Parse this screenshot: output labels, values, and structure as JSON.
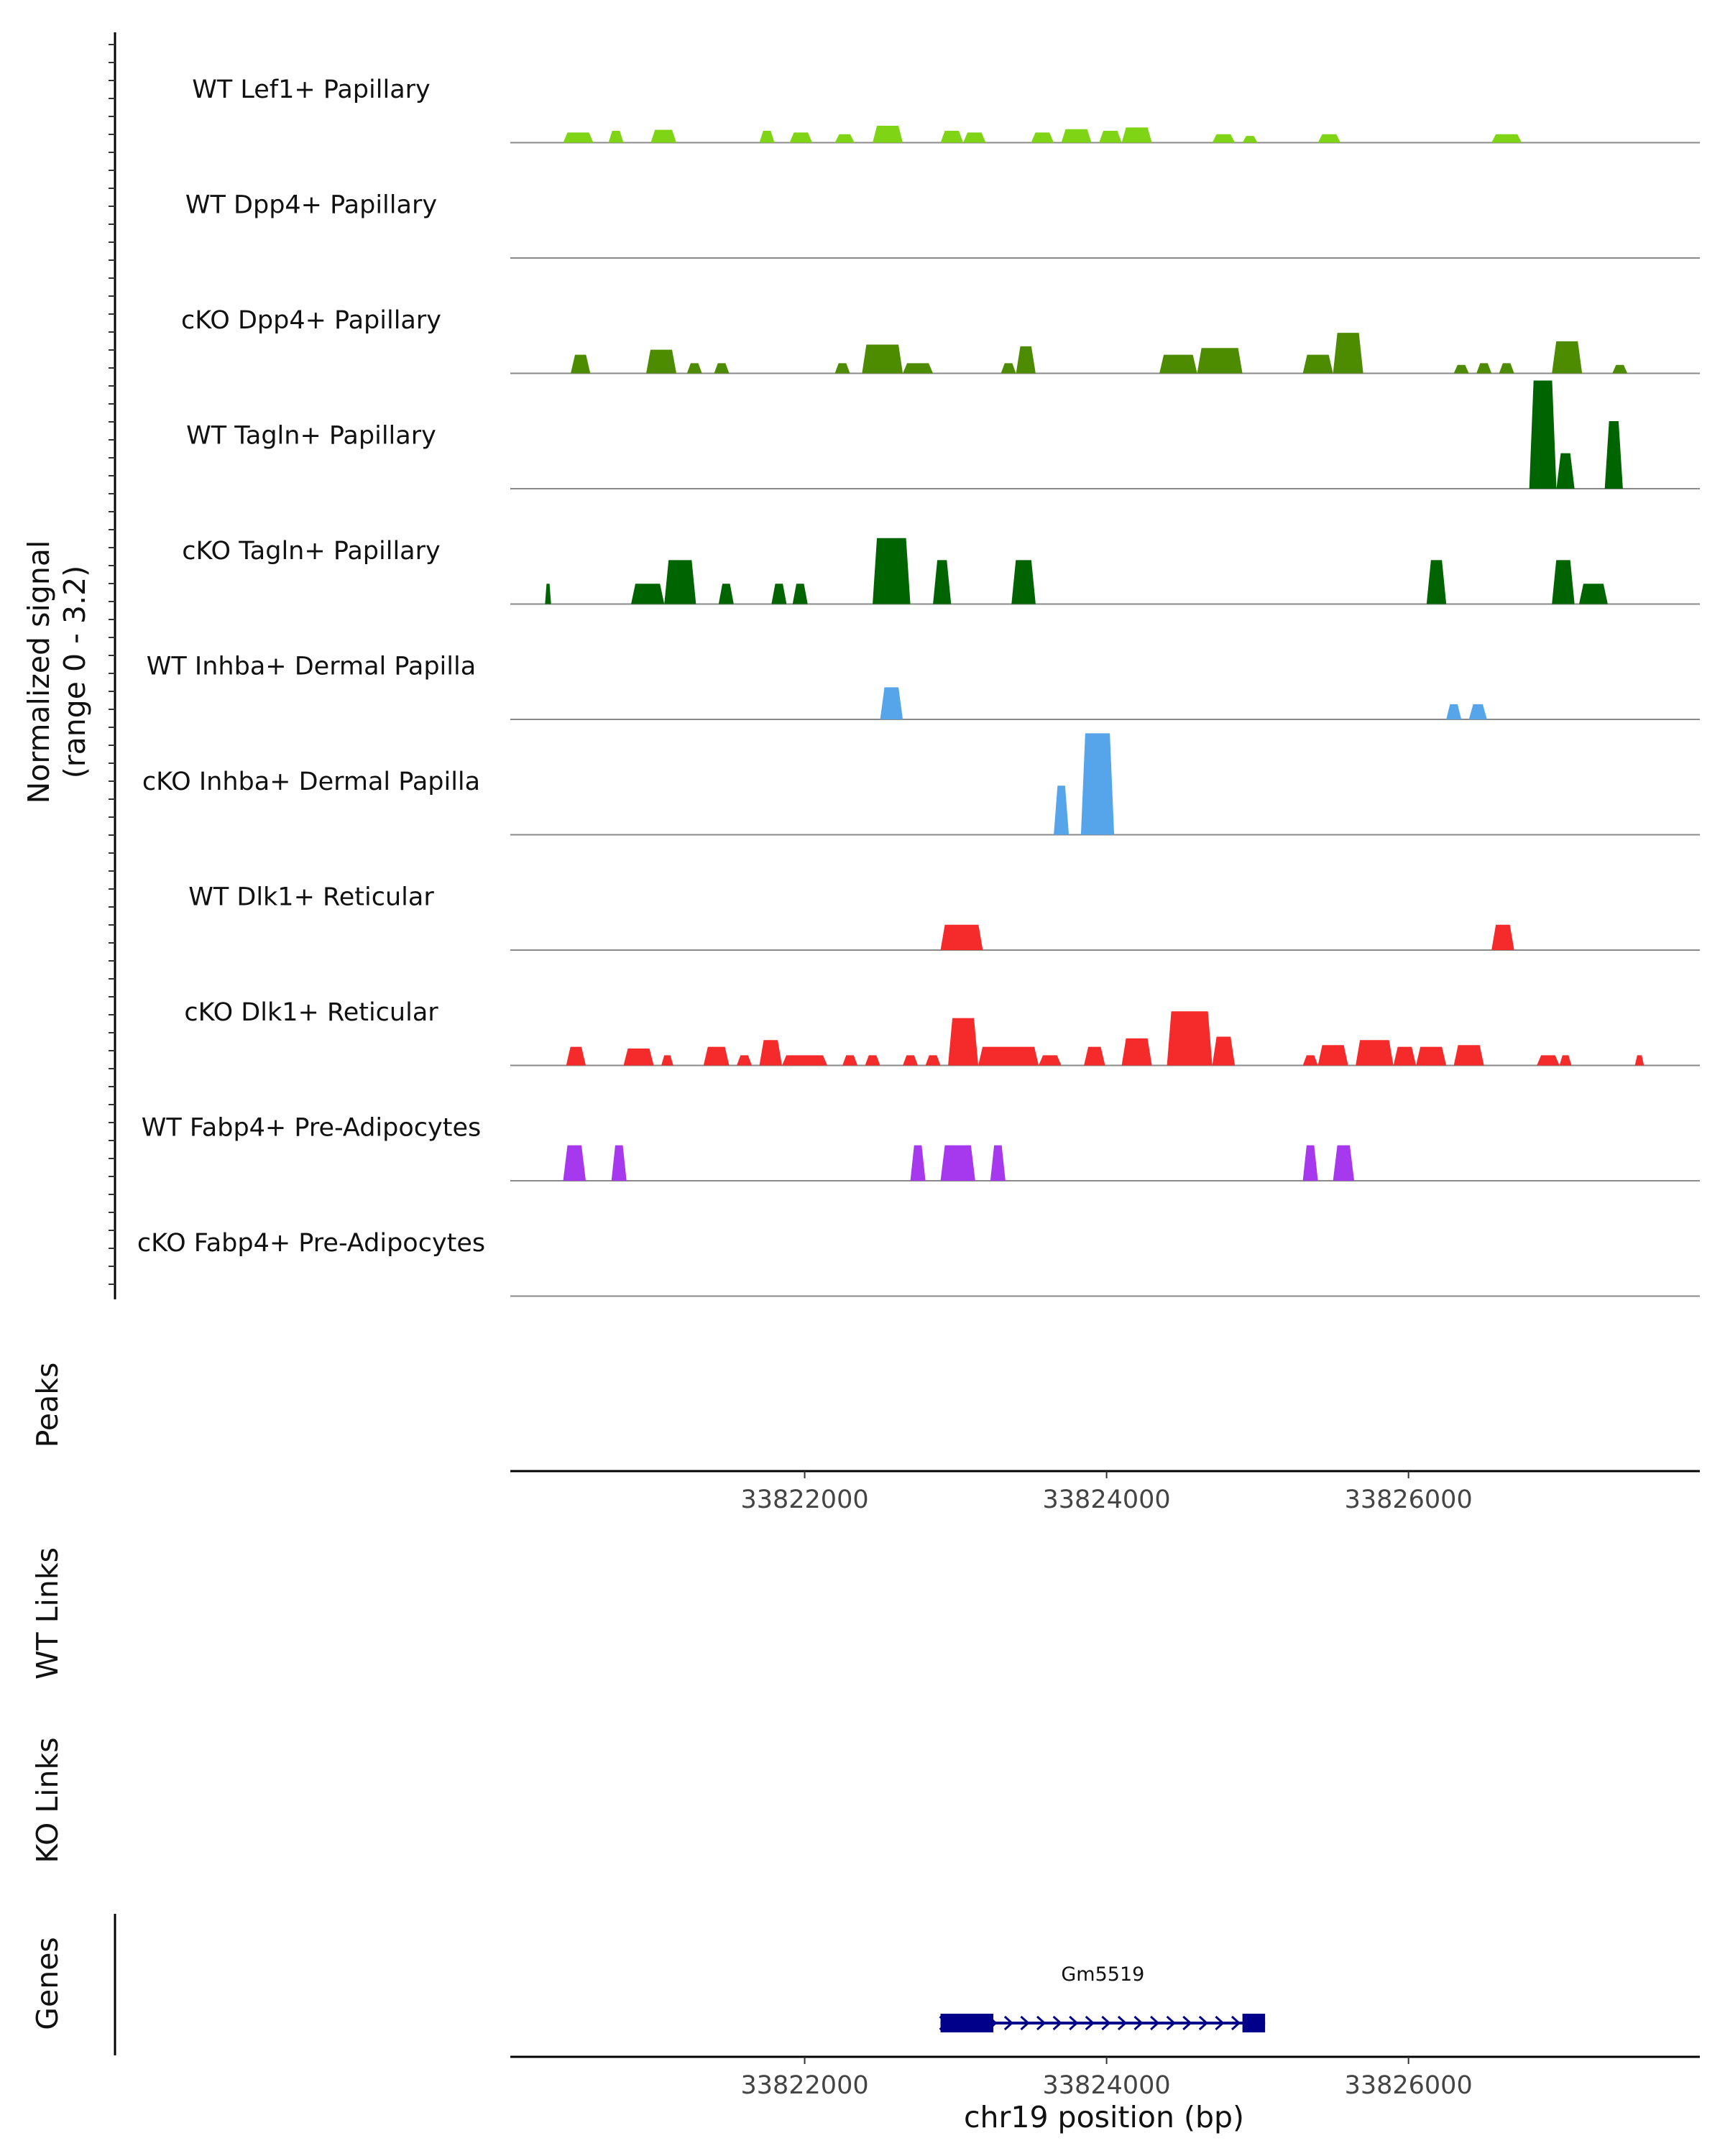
{
  "chart_data": {
    "type": "area",
    "title": "",
    "xlabel": "chr19 position (bp)",
    "xlim": [
      33820050,
      33827930
    ],
    "x_ticks": [
      "33822000",
      "33824000",
      "33826000"
    ],
    "x_tick_values": [
      33822000,
      33824000,
      33826000
    ],
    "signal_ylabel": [
      "Normalized signal",
      "(range 0 - 3.2)"
    ],
    "ylim": [
      0,
      3.2
    ],
    "tracks": [
      {
        "name": "WT Lef1+ Papillary",
        "color": "#7FD415",
        "peaks": [
          [
            33820400,
            33820600,
            0.3
          ],
          [
            33820700,
            33820800,
            0.35
          ],
          [
            33820980,
            33821150,
            0.38
          ],
          [
            33821700,
            33821800,
            0.35
          ],
          [
            33821900,
            33822050,
            0.3
          ],
          [
            33822200,
            33822330,
            0.25
          ],
          [
            33822450,
            33822650,
            0.5
          ],
          [
            33822900,
            33823050,
            0.35
          ],
          [
            33823050,
            33823200,
            0.3
          ],
          [
            33823500,
            33823650,
            0.3
          ],
          [
            33823700,
            33823900,
            0.4
          ],
          [
            33823950,
            33824100,
            0.35
          ],
          [
            33824100,
            33824300,
            0.45
          ],
          [
            33824700,
            33824850,
            0.25
          ],
          [
            33824900,
            33825000,
            0.2
          ],
          [
            33825400,
            33825550,
            0.25
          ],
          [
            33826550,
            33826750,
            0.25
          ]
        ]
      },
      {
        "name": "WT Dpp4+ Papillary",
        "color": "#4D8B00",
        "peaks": []
      },
      {
        "name": "cKO Dpp4+ Papillary",
        "color": "#4D8B00",
        "peaks": [
          [
            33820450,
            33820580,
            0.55
          ],
          [
            33820950,
            33821150,
            0.7
          ],
          [
            33821220,
            33821320,
            0.3
          ],
          [
            33821400,
            33821500,
            0.3
          ],
          [
            33822200,
            33822300,
            0.3
          ],
          [
            33822380,
            33822650,
            0.85
          ],
          [
            33822650,
            33822850,
            0.3
          ],
          [
            33823300,
            33823400,
            0.3
          ],
          [
            33823400,
            33823530,
            0.8
          ],
          [
            33824350,
            33824600,
            0.55
          ],
          [
            33824600,
            33824900,
            0.75
          ],
          [
            33825300,
            33825500,
            0.55
          ],
          [
            33825500,
            33825700,
            1.2
          ],
          [
            33826300,
            33826400,
            0.25
          ],
          [
            33826450,
            33826550,
            0.3
          ],
          [
            33826600,
            33826700,
            0.3
          ],
          [
            33826950,
            33827150,
            0.95
          ],
          [
            33827350,
            33827450,
            0.25
          ]
        ]
      },
      {
        "name": "WT Tagln+ Papillary",
        "color": "#006400",
        "peaks": [
          [
            33826800,
            33826980,
            3.2
          ],
          [
            33826980,
            33827100,
            1.05
          ],
          [
            33827300,
            33827420,
            2.0
          ]
        ]
      },
      {
        "name": "cKO Tagln+ Papillary",
        "color": "#006400",
        "peaks": [
          [
            33820280,
            33820320,
            0.6
          ],
          [
            33820850,
            33821070,
            0.6
          ],
          [
            33821070,
            33821280,
            1.3
          ],
          [
            33821430,
            33821530,
            0.6
          ],
          [
            33821780,
            33821880,
            0.6
          ],
          [
            33821920,
            33822020,
            0.6
          ],
          [
            33822450,
            33822700,
            1.95
          ],
          [
            33822850,
            33822970,
            1.3
          ],
          [
            33823370,
            33823530,
            1.3
          ],
          [
            33826120,
            33826250,
            1.3
          ],
          [
            33826950,
            33827100,
            1.3
          ],
          [
            33827130,
            33827320,
            0.6
          ]
        ]
      },
      {
        "name": "WT Inhba+ Dermal Papilla",
        "color": "#56A5EA",
        "peaks": [
          [
            33822500,
            33822650,
            0.95
          ],
          [
            33826250,
            33826350,
            0.45
          ],
          [
            33826400,
            33826520,
            0.45
          ]
        ]
      },
      {
        "name": "cKO Inhba+ Dermal Papilla",
        "color": "#56A5EA",
        "peaks": [
          [
            33823650,
            33823750,
            1.45
          ],
          [
            33823830,
            33824050,
            3.0
          ]
        ]
      },
      {
        "name": "WT Dlk1+ Reticular",
        "color": "#F52A2A",
        "peaks": [
          [
            33822900,
            33823180,
            0.75
          ],
          [
            33826550,
            33826700,
            0.75
          ]
        ]
      },
      {
        "name": "cKO Dlk1+ Reticular",
        "color": "#F52A2A",
        "peaks": [
          [
            33820420,
            33820550,
            0.55
          ],
          [
            33820800,
            33821000,
            0.5
          ],
          [
            33821050,
            33821130,
            0.3
          ],
          [
            33821330,
            33821500,
            0.55
          ],
          [
            33821550,
            33821650,
            0.3
          ],
          [
            33821700,
            33821850,
            0.75
          ],
          [
            33821850,
            33822150,
            0.3
          ],
          [
            33822250,
            33822350,
            0.3
          ],
          [
            33822400,
            33822500,
            0.3
          ],
          [
            33822650,
            33822750,
            0.3
          ],
          [
            33822800,
            33822900,
            0.3
          ],
          [
            33822950,
            33823150,
            1.4
          ],
          [
            33823150,
            33823550,
            0.55
          ],
          [
            33823550,
            33823700,
            0.3
          ],
          [
            33823850,
            33823990,
            0.55
          ],
          [
            33824100,
            33824300,
            0.8
          ],
          [
            33824400,
            33824700,
            1.6
          ],
          [
            33824700,
            33824850,
            0.85
          ],
          [
            33825300,
            33825400,
            0.3
          ],
          [
            33825400,
            33825600,
            0.6
          ],
          [
            33825650,
            33825900,
            0.75
          ],
          [
            33825900,
            33826050,
            0.55
          ],
          [
            33826050,
            33826250,
            0.55
          ],
          [
            33826300,
            33826500,
            0.6
          ],
          [
            33826850,
            33827000,
            0.3
          ],
          [
            33827000,
            33827080,
            0.3
          ],
          [
            33827500,
            33827560,
            0.3
          ]
        ]
      },
      {
        "name": "WT Fabp4+ Pre-Adipocytes",
        "color": "#A638EE",
        "peaks": [
          [
            33820400,
            33820550,
            1.05
          ],
          [
            33820720,
            33820820,
            1.05
          ],
          [
            33822700,
            33822800,
            1.05
          ],
          [
            33822900,
            33823130,
            1.05
          ],
          [
            33823230,
            33823330,
            1.05
          ],
          [
            33825300,
            33825400,
            1.05
          ],
          [
            33825500,
            33825640,
            1.05
          ]
        ]
      },
      {
        "name": "cKO Fabp4+ Pre-Adipocytes",
        "color": "#A638EE",
        "peaks": []
      }
    ],
    "row_labels": {
      "peaks": "Peaks",
      "wt_links": "WT Links",
      "ko_links": "KO Links",
      "genes": "Genes"
    },
    "gene": {
      "name": "Gm5519",
      "start": 33822900,
      "end": 33825050,
      "strand": "+",
      "exons": [
        [
          33822900,
          33823250
        ],
        [
          33824900,
          33825050
        ]
      ],
      "color": "#00008B"
    }
  }
}
